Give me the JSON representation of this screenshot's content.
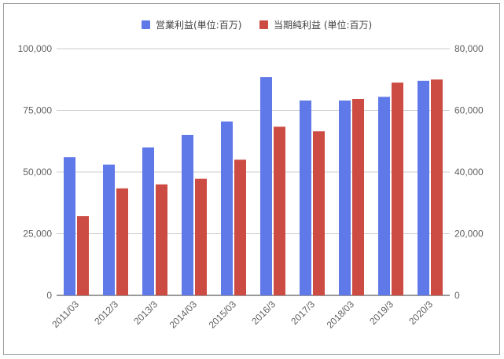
{
  "chart_data": {
    "type": "bar",
    "categories": [
      "2011/03",
      "2012/3",
      "2013/3",
      "2014/03",
      "2015/03",
      "2016/3",
      "2017/3",
      "2018/03",
      "2019/3",
      "2020/3"
    ],
    "series": [
      {
        "name": "営業利益(単位:百万)",
        "axis": "left",
        "color": "#6079e8",
        "values": [
          56000,
          53000,
          60000,
          65000,
          70500,
          88500,
          79000,
          79000,
          80500,
          87000
        ]
      },
      {
        "name": "当期純利益 (単位:百万)",
        "axis": "right",
        "color": "#cc4b42",
        "values": [
          25700,
          34700,
          36000,
          37800,
          44000,
          54700,
          53200,
          63700,
          69000,
          70000
        ]
      }
    ],
    "y_left": {
      "ylim": [
        0,
        100000
      ],
      "ticks": [
        "0",
        "25,000",
        "50,000",
        "75,000",
        "100,000"
      ]
    },
    "y_right": {
      "ylim": [
        0,
        80000
      ],
      "ticks": [
        "0",
        "20,000",
        "40,000",
        "60,000",
        "80,000"
      ]
    },
    "grid": true,
    "legend_position": "top"
  }
}
